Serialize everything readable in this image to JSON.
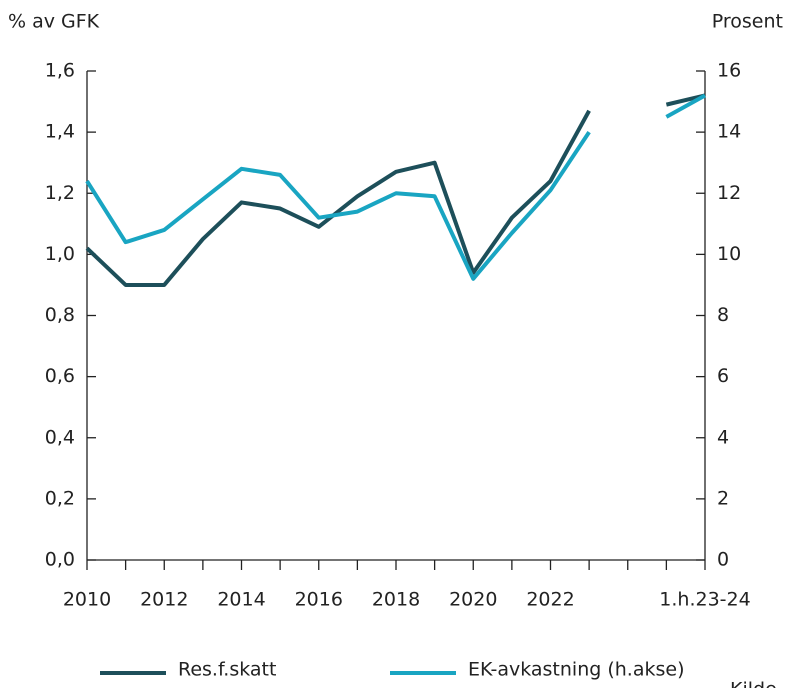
{
  "chart_data": {
    "type": "line",
    "y_label": "% av GFK",
    "y2_label": "Prosent",
    "source": "Kilde",
    "categories": [
      "2010",
      null,
      "2012",
      null,
      "2014",
      null,
      "2016",
      null,
      "2018",
      null,
      "2020",
      null,
      "2022",
      null,
      null,
      null,
      "1.h.23-24"
    ],
    "series": [
      {
        "name": "Res.f.skatt",
        "color": "#1d4f5a",
        "values": [
          1.02,
          0.9,
          0.9,
          1.05,
          1.17,
          1.15,
          1.09,
          1.19,
          1.27,
          1.3,
          0.94,
          1.12,
          1.24,
          1.47,
          null,
          1.49,
          1.52
        ]
      },
      {
        "name": "EK-avkastning (h.akse)",
        "color": "#19a5c2",
        "axis": "y2",
        "values": [
          12.4,
          10.4,
          10.8,
          11.8,
          12.8,
          12.6,
          11.2,
          11.4,
          12.0,
          11.9,
          9.2,
          10.7,
          12.1,
          14.0,
          null,
          14.5,
          15.2
        ]
      }
    ],
    "ylim": [
      0,
      1.6
    ],
    "yticks": [
      {
        "value": 0,
        "label": "0,0"
      },
      {
        "value": 0.2,
        "label": "0,2"
      },
      {
        "value": 0.4,
        "label": "0,4"
      },
      {
        "value": 0.6,
        "label": "0,6"
      },
      {
        "value": 0.8,
        "label": "0,8"
      },
      {
        "value": 1.0,
        "label": "1,0"
      },
      {
        "value": 1.2,
        "label": "1,2"
      },
      {
        "value": 1.4,
        "label": "1,4"
      },
      {
        "value": 1.6,
        "label": "1,6"
      }
    ],
    "y2lim": [
      0,
      16
    ],
    "y2ticks": [
      0,
      2,
      4,
      6,
      8,
      10,
      12,
      14,
      16
    ],
    "legend": "bottom"
  }
}
